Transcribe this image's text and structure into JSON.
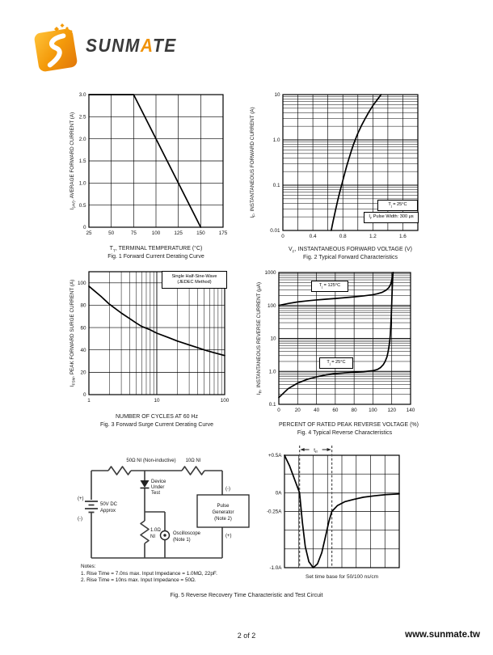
{
  "logo": {
    "brand_pre": "SUNM",
    "brand_a": "A",
    "brand_post": "TE",
    "colors": {
      "orange_light": "#FFC33A",
      "orange": "#F49B0B",
      "orange_dark": "#E2770A",
      "text": "#3A3A3A"
    }
  },
  "footer": {
    "page_number": "2 of 2",
    "url": "www.sunmate.tw"
  },
  "fig5": {
    "caption": "Fig. 5  Reverse Recovery Time Characteristic and Test Circuit",
    "circuit": {
      "r1_label": "50Ω NI (Non-inductive)",
      "r2_label": "10Ω NI",
      "dut_line1": "Device",
      "dut_line2": "Under",
      "dut_line3": "Test",
      "battery_plus": "(+)",
      "battery_minus": "(-)",
      "battery_line1": "50V DC",
      "battery_line2": "Approx",
      "r3_line1": "1.0Ω",
      "r3_line2": "NI",
      "scope_line1": "Oscilloscope",
      "scope_line2": "(Note 1)",
      "pg_line1": "Pulse",
      "pg_line2": "Generator",
      "pg_line3": "(Note 2)",
      "pg_minus": "(-)",
      "pg_plus": "(+)"
    },
    "notes_title": "Notes:",
    "note1": "1. Rise Time = 7.0ns max. Input Impedance = 1.0MΩ, 22pF.",
    "note2": "2. Rise Time = 10ns max. Input Impedance = 50Ω."
  },
  "chart_data": [
    {
      "type": "line",
      "title": "Fig. 1  Forward Current Derating Curve",
      "xlabel": {
        "sym": "T",
        "sub": "T",
        "rest": ", TERMINAL TEMPERATURE (°C)"
      },
      "ylabel": {
        "sym": "I",
        "sub": "(AV)",
        "rest": ", AVERAGE FORWARD CURRENT (A)"
      },
      "xscale": "linear",
      "yscale": "linear",
      "xlim": [
        25,
        175
      ],
      "ylim": [
        0,
        3
      ],
      "xstep": 25,
      "ystep": 0.5,
      "xticks": {
        "values": [
          25,
          50,
          75,
          100,
          125,
          150,
          175
        ],
        "labels": [
          "25",
          "50",
          "75",
          "100",
          "125",
          "150",
          "175"
        ]
      },
      "yticks": {
        "values": [
          0,
          0.5,
          1,
          1.5,
          2,
          2.5,
          3
        ],
        "labels": [
          "0",
          "0.5",
          "1.0",
          "1.5",
          "2.0",
          "2.5",
          "3.0"
        ]
      },
      "series": [
        {
          "name": "average-forward-current",
          "points": [
            [
              25,
              3
            ],
            [
              75,
              3
            ],
            [
              150,
              0
            ]
          ]
        }
      ]
    },
    {
      "type": "line",
      "title": "Fig. 2  Typical Forward Characteristics",
      "xlabel": {
        "sym": "V",
        "sub": "F",
        "rest": ", INSTANTANEOUS FORWARD VOLTAGE (V)"
      },
      "ylabel": {
        "sym": "I",
        "sub": "F",
        "rest": ", INSTANTANEOUS FORWARD CURRENT (A)"
      },
      "xscale": "linear",
      "yscale": "log",
      "xlim": [
        0,
        1.8
      ],
      "ylim": [
        0.01,
        10
      ],
      "xstep": 0.2,
      "xticks": {
        "values": [
          0,
          0.4,
          0.8,
          1.2,
          1.6
        ],
        "labels": [
          "0",
          "0.4",
          "0.8",
          "1.2",
          "1.6"
        ]
      },
      "yticks": {
        "values": [
          10,
          1,
          0.1,
          0.01
        ],
        "labels": [
          "10",
          "1.0",
          "0.1",
          "0.01"
        ]
      },
      "annotation1": {
        "sym": "T",
        "sub": "j",
        "rest": " = 25°C"
      },
      "annotation2": {
        "sym": "I",
        "sub": "F",
        "rest": " Pulse Width: 300 μs"
      },
      "series": [
        {
          "name": "forward-characteristic",
          "points": [
            [
              0.645,
              0.01
            ],
            [
              0.67,
              0.016
            ],
            [
              0.7,
              0.027
            ],
            [
              0.73,
              0.045
            ],
            [
              0.76,
              0.072
            ],
            [
              0.79,
              0.11
            ],
            [
              0.82,
              0.17
            ],
            [
              0.85,
              0.26
            ],
            [
              0.88,
              0.38
            ],
            [
              0.91,
              0.55
            ],
            [
              0.94,
              0.78
            ],
            [
              0.97,
              1.05
            ],
            [
              1.0,
              1.4
            ],
            [
              1.05,
              2.1
            ],
            [
              1.1,
              3.0
            ],
            [
              1.15,
              4.2
            ],
            [
              1.2,
              5.7
            ],
            [
              1.25,
              7.4
            ],
            [
              1.31,
              10
            ]
          ]
        }
      ]
    },
    {
      "type": "line",
      "title": "Fig. 3  Forward Surge Current Derating Curve",
      "xlabel": {
        "rest": "NUMBER OF CYCLES AT 60 Hz"
      },
      "ylabel": {
        "sym": "I",
        "sub": "FSM",
        "rest": ", PEAK FORWARD SURGE CURRENT (A)"
      },
      "xscale": "log",
      "yscale": "linear",
      "xlim": [
        1,
        100
      ],
      "ylim": [
        0,
        110
      ],
      "ystep": 20,
      "xticks": {
        "values": [
          1,
          10,
          100
        ],
        "labels": [
          "1",
          "10",
          "100"
        ]
      },
      "yticks": {
        "values": [
          0,
          20,
          40,
          60,
          80,
          100
        ],
        "labels": [
          "0",
          "20",
          "40",
          "60",
          "80",
          "100"
        ]
      },
      "annotation_line1": "Single Half-Sine-Wave",
      "annotation_line2": "(JEDEC Method)",
      "series": [
        {
          "name": "surge-derating",
          "points": [
            [
              1,
              97
            ],
            [
              1.5,
              88
            ],
            [
              2,
              81
            ],
            [
              3,
              73
            ],
            [
              4,
              68
            ],
            [
              5,
              64
            ],
            [
              6,
              61
            ],
            [
              8,
              58
            ],
            [
              10,
              55
            ],
            [
              15,
              51
            ],
            [
              20,
              48
            ],
            [
              30,
              44.5
            ],
            [
              40,
              42
            ],
            [
              50,
              40
            ],
            [
              70,
              37.5
            ],
            [
              100,
              35
            ]
          ]
        }
      ]
    },
    {
      "type": "line",
      "title": "Fig. 4  Typical Reverse Characteristics",
      "xlabel": {
        "rest": "PERCENT OF RATED PEAK REVERSE VOLTAGE (%)"
      },
      "ylabel": {
        "sym": "I",
        "sub": "R",
        "rest": ", INSTANTANEOUS REVERSE CURRENT (μA)"
      },
      "xscale": "linear",
      "yscale": "log",
      "xlim": [
        0,
        140
      ],
      "ylim": [
        0.1,
        1000
      ],
      "xstep": 20,
      "xticks": {
        "values": [
          0,
          20,
          40,
          60,
          80,
          100,
          120,
          140
        ],
        "labels": [
          "0",
          "20",
          "40",
          "60",
          "80",
          "100",
          "120",
          "140"
        ]
      },
      "yticks": {
        "values": [
          1000,
          100,
          10,
          1,
          0.1
        ],
        "labels": [
          "1000",
          "100",
          "10",
          "1.0",
          "0.1"
        ]
      },
      "annotation1": {
        "sym": "T",
        "sub": "j",
        "rest": " = 125°C"
      },
      "annotation2": {
        "sym": "T",
        "sub": "j",
        "rest": " = 25°C"
      },
      "series": [
        {
          "name": "Tj-125C",
          "points": [
            [
              0,
              100
            ],
            [
              10,
              115
            ],
            [
              20,
              128
            ],
            [
              30,
              138
            ],
            [
              40,
              147
            ],
            [
              50,
              155
            ],
            [
              60,
              163
            ],
            [
              70,
              172
            ],
            [
              80,
              182
            ],
            [
              90,
              195
            ],
            [
              100,
              212
            ],
            [
              105,
              228
            ],
            [
              110,
              252
            ],
            [
              114,
              290
            ],
            [
              117,
              350
            ],
            [
              119,
              450
            ],
            [
              120,
              600
            ],
            [
              121,
              820
            ],
            [
              121.5,
              1000
            ]
          ]
        },
        {
          "name": "Tj-25C",
          "points": [
            [
              0,
              0.16
            ],
            [
              5,
              0.22
            ],
            [
              10,
              0.3
            ],
            [
              20,
              0.44
            ],
            [
              30,
              0.57
            ],
            [
              40,
              0.68
            ],
            [
              50,
              0.78
            ],
            [
              60,
              0.85
            ],
            [
              70,
              0.9
            ],
            [
              80,
              0.94
            ],
            [
              90,
              0.98
            ],
            [
              100,
              1.05
            ],
            [
              105,
              1.15
            ],
            [
              108,
              1.3
            ],
            [
              111,
              1.6
            ],
            [
              113,
              2.0
            ],
            [
              115,
              2.8
            ],
            [
              116,
              3.8
            ],
            [
              117,
              5.5
            ],
            [
              118,
              9
            ],
            [
              118.5,
              13
            ],
            [
              119,
              25
            ],
            [
              119.5,
              50
            ],
            [
              120,
              120
            ],
            [
              120.5,
              300
            ],
            [
              121,
              650
            ],
            [
              121.3,
              1000
            ]
          ]
        }
      ]
    },
    {
      "type": "line",
      "caption": "Set time base for 50/100 ns/cm",
      "xscale": "linear",
      "yscale": "linear",
      "xlim": [
        0,
        8
      ],
      "ylim": [
        -1,
        0.5
      ],
      "xstep": 1,
      "ystep": 0.25,
      "yticks": {
        "values": [
          0.5,
          0,
          -0.25,
          -1
        ],
        "labels": [
          "+0.5A",
          "0A",
          "-0.25A",
          "-1.0A"
        ]
      },
      "dashed_x": [
        1.05,
        3.3
      ],
      "trr_label": {
        "sym": "t",
        "sub": "rr"
      },
      "series": [
        {
          "name": "reverse-recovery-waveform",
          "points": [
            [
              0,
              0.5
            ],
            [
              0.35,
              0.36
            ],
            [
              0.7,
              0.18
            ],
            [
              1.05,
              0
            ],
            [
              1.25,
              -0.4
            ],
            [
              1.45,
              -0.72
            ],
            [
              1.7,
              -0.92
            ],
            [
              2.0,
              -1.0
            ],
            [
              2.3,
              -0.95
            ],
            [
              2.6,
              -0.8
            ],
            [
              2.9,
              -0.55
            ],
            [
              3.1,
              -0.38
            ],
            [
              3.3,
              -0.25
            ],
            [
              3.7,
              -0.17
            ],
            [
              4.2,
              -0.12
            ],
            [
              4.8,
              -0.09
            ],
            [
              5.5,
              -0.06
            ],
            [
              6.3,
              -0.04
            ],
            [
              7.1,
              -0.025
            ],
            [
              8,
              -0.015
            ]
          ]
        }
      ]
    }
  ]
}
